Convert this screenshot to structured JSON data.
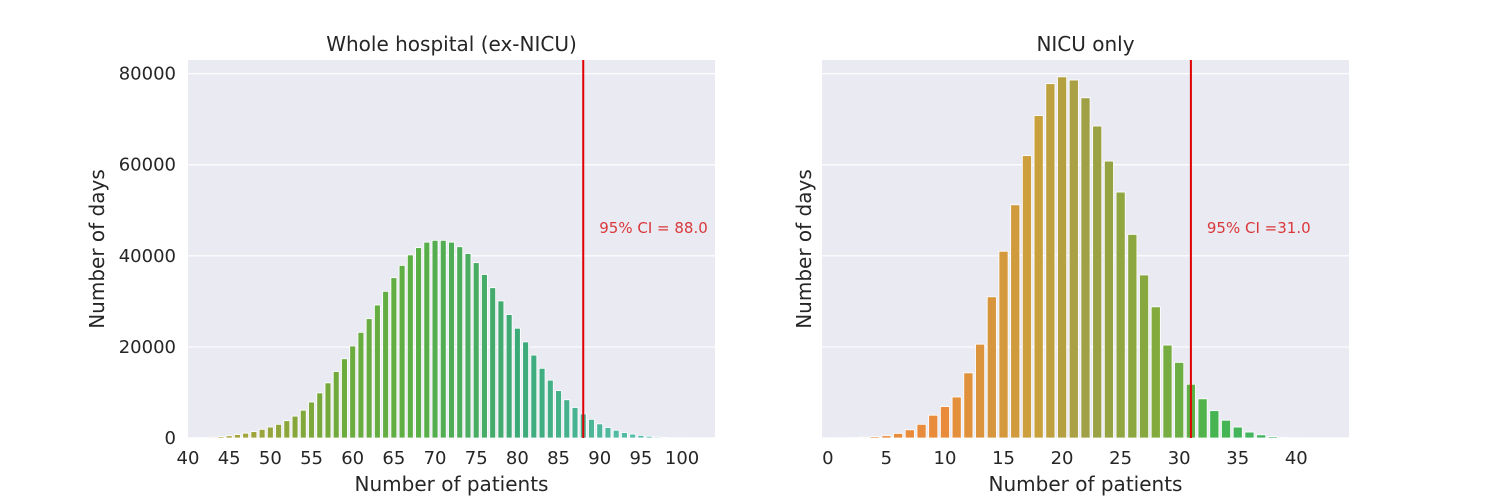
{
  "chart_data": [
    {
      "type": "bar",
      "title": "Whole hospital (ex-NICU)",
      "xlabel": "Number of patients",
      "ylabel": "Number of days",
      "xlim": [
        40,
        104
      ],
      "ylim": [
        0,
        83000
      ],
      "xticks": [
        40,
        45,
        50,
        55,
        60,
        65,
        70,
        75,
        80,
        85,
        90,
        95,
        100
      ],
      "yticks": [
        0,
        20000,
        40000,
        60000,
        80000
      ],
      "ytick_labels": [
        "0",
        "20000",
        "40000",
        "60000",
        "80000"
      ],
      "grid": true,
      "x": [
        41,
        42,
        43,
        44,
        45,
        46,
        47,
        48,
        49,
        50,
        51,
        52,
        53,
        54,
        55,
        56,
        57,
        58,
        59,
        60,
        61,
        62,
        63,
        64,
        65,
        66,
        67,
        68,
        69,
        70,
        71,
        72,
        73,
        74,
        75,
        76,
        77,
        78,
        79,
        80,
        81,
        82,
        83,
        84,
        85,
        86,
        87,
        88,
        89,
        90,
        91,
        92,
        93,
        94,
        95,
        96,
        97,
        98,
        99,
        100,
        101,
        102,
        103
      ],
      "values": [
        80,
        120,
        200,
        320,
        500,
        750,
        1050,
        1400,
        1900,
        2400,
        3000,
        3800,
        4800,
        6100,
        7900,
        9900,
        12100,
        14600,
        17400,
        20200,
        23200,
        26200,
        29200,
        32200,
        35200,
        37900,
        40200,
        41800,
        43000,
        43400,
        43400,
        43000,
        42000,
        40500,
        38500,
        35900,
        33000,
        30100,
        27100,
        24100,
        21100,
        18200,
        15300,
        12700,
        10400,
        8400,
        6700,
        5300,
        4100,
        3100,
        2300,
        1700,
        1200,
        850,
        580,
        380,
        230,
        130,
        70,
        35,
        15,
        8,
        4
      ],
      "reference_line": {
        "x": 88.0,
        "color": "#e00000"
      },
      "annotation": "95% CI = 88.0"
    },
    {
      "type": "bar",
      "title": "NICU only",
      "xlabel": "Number of patients",
      "ylabel": "Number of days",
      "xlim": [
        -0.5,
        44.5
      ],
      "ylim": [
        0,
        83000
      ],
      "xticks": [
        0,
        5,
        10,
        15,
        20,
        25,
        30,
        35,
        40
      ],
      "yticks": [
        0,
        20000,
        40000,
        60000,
        80000
      ],
      "grid": true,
      "x": [
        0,
        1,
        2,
        3,
        4,
        5,
        6,
        7,
        8,
        9,
        10,
        11,
        12,
        13,
        14,
        15,
        16,
        17,
        18,
        19,
        20,
        21,
        22,
        23,
        24,
        25,
        26,
        27,
        28,
        29,
        30,
        31,
        32,
        33,
        34,
        35,
        36,
        37,
        38,
        39,
        40,
        41,
        42,
        43
      ],
      "values": [
        20,
        40,
        90,
        180,
        300,
        500,
        1000,
        1800,
        3000,
        5000,
        6900,
        9000,
        14300,
        20600,
        31000,
        41000,
        51200,
        62000,
        70800,
        77800,
        79300,
        78600,
        74700,
        68500,
        60800,
        54000,
        44700,
        35800,
        28800,
        20400,
        16600,
        11800,
        8600,
        6000,
        3900,
        2400,
        1300,
        700,
        300,
        120,
        40,
        15,
        5,
        2
      ],
      "reference_line": {
        "x": 31.0,
        "color": "#e00000"
      },
      "annotation": "95% CI =31.0"
    }
  ]
}
